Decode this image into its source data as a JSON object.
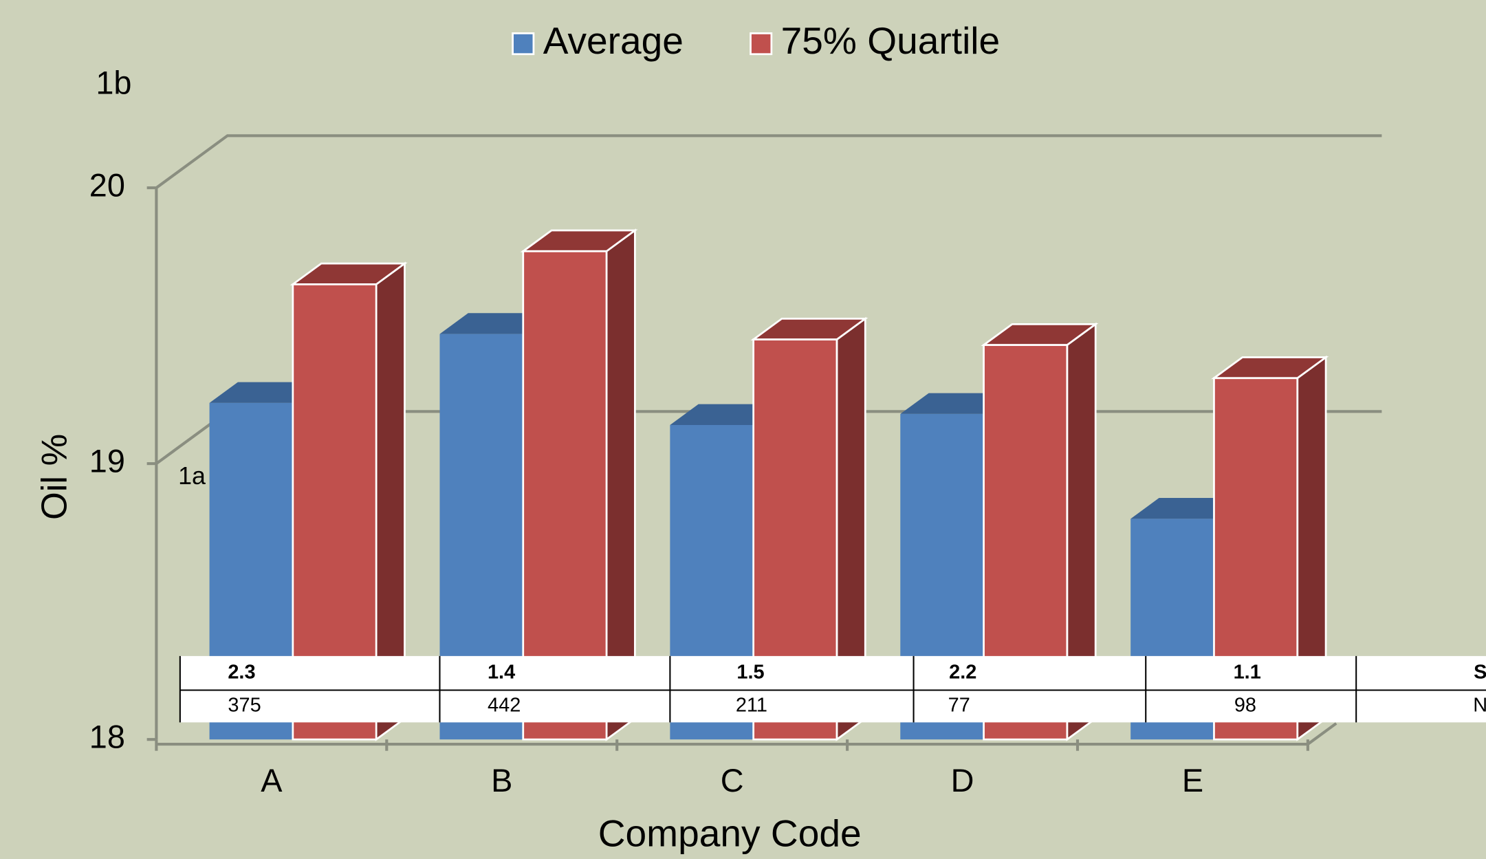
{
  "chart_data": {
    "type": "bar",
    "x_label": "Company Code",
    "y_label": "Oil %",
    "categories": [
      "A",
      "B",
      "C",
      "D",
      "E"
    ],
    "series": [
      {
        "name": "Average",
        "color": "#4f81bd",
        "values": [
          19.22,
          19.47,
          19.14,
          19.18,
          18.8
        ]
      },
      {
        "name": "75% Quartile",
        "color": "#c0504d",
        "values": [
          19.65,
          19.77,
          19.45,
          19.43,
          19.31
        ]
      }
    ],
    "ylim": [
      18,
      20
    ],
    "yticks": [
      18,
      19,
      20
    ],
    "grid": true,
    "legend": "top",
    "annotations": [
      "1b",
      "1a"
    ]
  },
  "table": {
    "rows": [
      [
        2.3,
        1.4,
        1.5,
        2.2,
        1.1,
        "S"
      ],
      [
        375,
        442,
        211,
        77,
        98,
        "N"
      ]
    ]
  }
}
